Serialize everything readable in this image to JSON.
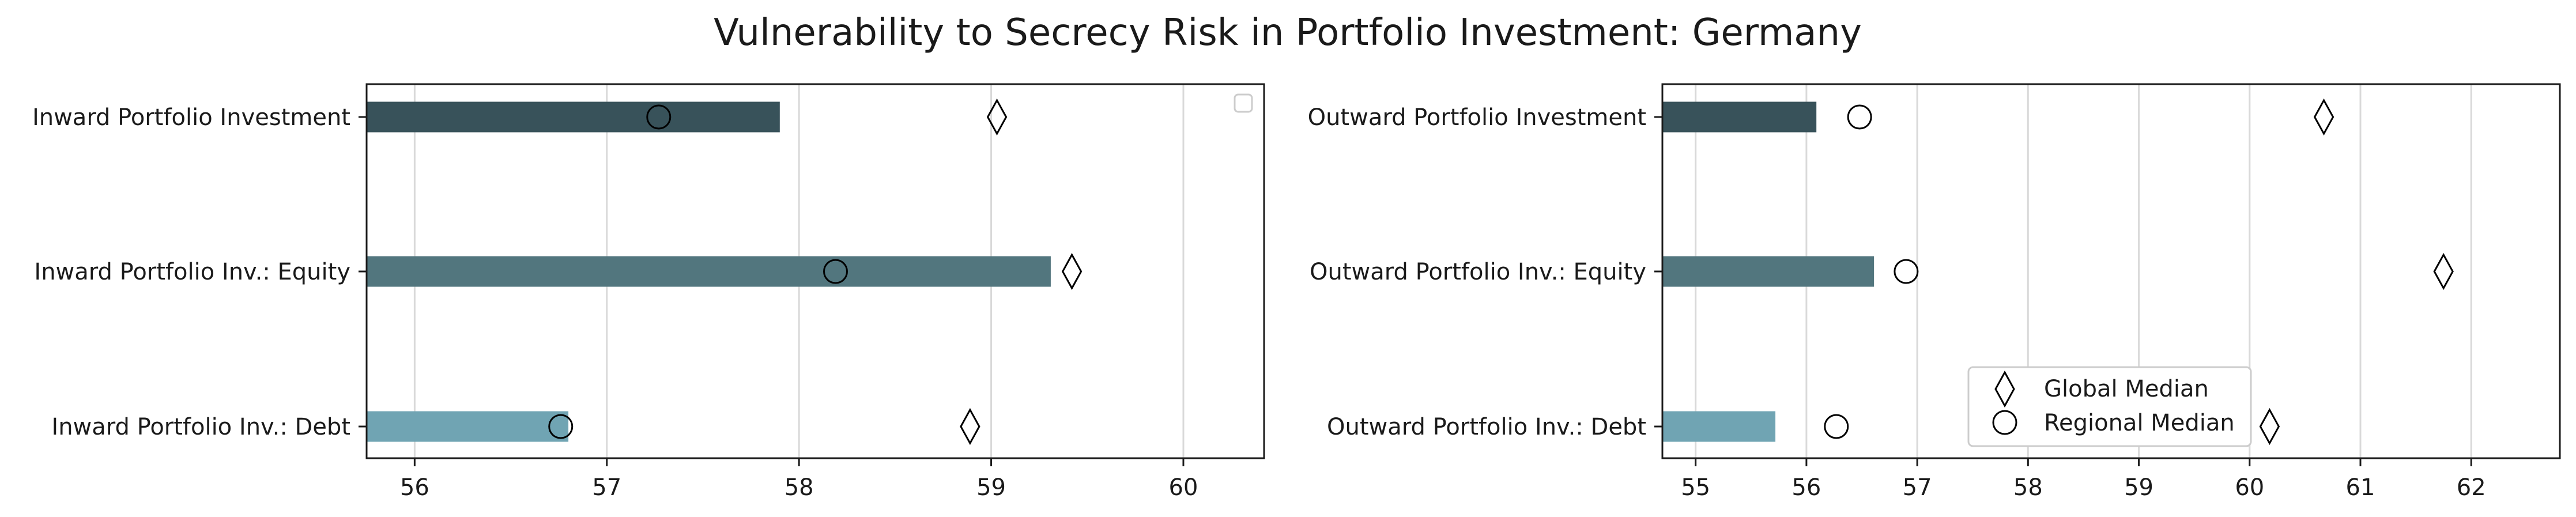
{
  "figure": {
    "title": "Vulnerability to Secrecy Risk in Portfolio Investment: Germany"
  },
  "legend": {
    "global_label": "Global Median",
    "regional_label": "Regional Median"
  },
  "colors": {
    "bar_investment": "#38525a",
    "bar_equity": "#52767e",
    "bar_debt": "#70a4b3",
    "grid": "#d9d9d9",
    "axis": "#1a1a1a",
    "marker_edge": "#000000"
  },
  "chart_data": [
    {
      "type": "bar",
      "orientation": "horizontal",
      "title": "",
      "xlabel": "",
      "ylabel": "",
      "categories": [
        "Inward Portfolio Investment",
        "Inward Portfolio Inv.: Equity",
        "Inward Portfolio Inv.: Debt"
      ],
      "values": [
        57.9,
        59.31,
        56.8
      ],
      "series": [
        {
          "marker": "diamond",
          "values": [
            59.03,
            59.42,
            58.89
          ]
        },
        {
          "marker": "circle",
          "values": [
            57.27,
            58.19,
            56.76
          ]
        }
      ],
      "xlim": [
        55.75,
        60.42
      ],
      "xticks": [
        56,
        57,
        58,
        59,
        60
      ],
      "grid": "vertical",
      "legend": "empty box, upper right"
    },
    {
      "type": "bar",
      "orientation": "horizontal",
      "title": "",
      "xlabel": "",
      "ylabel": "",
      "categories": [
        "Outward Portfolio Investment",
        "Outward Portfolio Inv.: Equity",
        "Outward Portfolio Inv.: Debt"
      ],
      "values": [
        56.09,
        56.61,
        55.72
      ],
      "series": [
        {
          "name": "Global Median",
          "marker": "diamond",
          "values": [
            60.67,
            61.75,
            60.18
          ]
        },
        {
          "name": "Regional Median",
          "marker": "circle",
          "values": [
            56.48,
            56.9,
            56.27
          ]
        }
      ],
      "xlim": [
        54.7,
        62.8
      ],
      "xticks": [
        55,
        56,
        57,
        58,
        59,
        60,
        61,
        62
      ],
      "grid": "vertical",
      "legend": "lower center"
    }
  ]
}
